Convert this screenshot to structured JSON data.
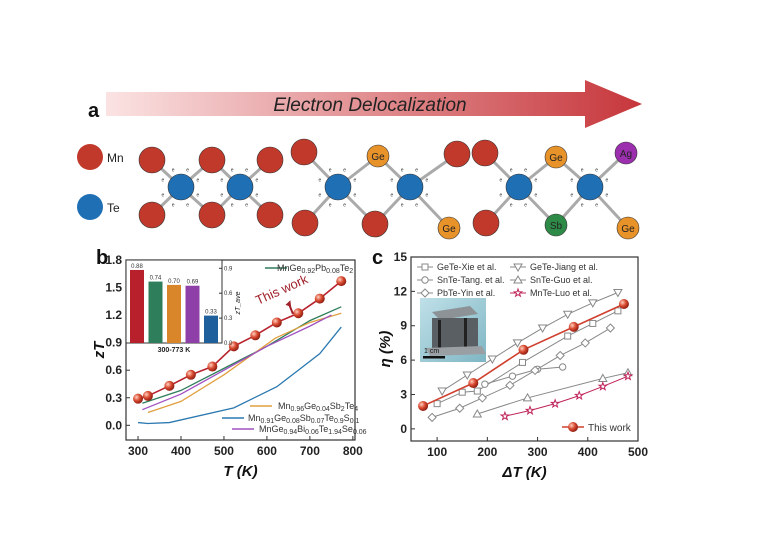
{
  "panel_a": {
    "label": "a",
    "arrow_text": "Electron Delocalization",
    "legend": [
      {
        "symbol": "Mn",
        "color": "#c0392b"
      },
      {
        "symbol": "Te",
        "color": "#1f6fb5"
      }
    ],
    "atom_labels": {
      "ge": "Ge",
      "ag": "Ag",
      "sb": "Sb"
    },
    "colors": {
      "mn": "#c0392b",
      "te": "#1f6fb5",
      "ge": "#e8922a",
      "ag": "#9b2fae",
      "sb": "#2e8b47",
      "arrow_start": "#fbe3e3",
      "arrow_end": "#c6363b"
    }
  },
  "panel_b": {
    "label": "b"
  },
  "panel_c": {
    "label": "c",
    "inset_scale": "1 cm"
  },
  "chart_data": [
    {
      "id": "b-main",
      "type": "line",
      "xlabel": "T (K)",
      "ylabel": "zT",
      "xlim": [
        272,
        805
      ],
      "ylim": [
        -0.16,
        1.8
      ],
      "xticks": [
        300,
        400,
        500,
        600,
        700,
        800
      ],
      "yticks": [
        0.0,
        0.3,
        0.6,
        0.9,
        1.2,
        1.5,
        1.8
      ],
      "annotation": "This work",
      "series": [
        {
          "name": "This work",
          "color": "#b8212c",
          "marker": "sphere",
          "x": [
            300,
            323,
            373,
            423,
            473,
            523,
            573,
            623,
            673,
            723,
            773
          ],
          "y": [
            0.29,
            0.32,
            0.43,
            0.55,
            0.64,
            0.86,
            0.98,
            1.12,
            1.22,
            1.38,
            1.57
          ]
        },
        {
          "name": "MnGe0.92Pb0.08Te2",
          "color": "#2e7d5b",
          "x": [
            310,
            400,
            500,
            600,
            700,
            773
          ],
          "y": [
            0.24,
            0.38,
            0.62,
            0.86,
            1.14,
            1.29
          ]
        },
        {
          "name": "Mn0.96Ge0.04Sb2Te4",
          "color": "#e0a040",
          "x": [
            323,
            400,
            500,
            620,
            700,
            773
          ],
          "y": [
            0.14,
            0.26,
            0.55,
            0.95,
            1.12,
            1.22
          ]
        },
        {
          "name": "Mn0.91Ge0.08Sb0.07Te0.9S0.1",
          "color": "#2a78b0",
          "x": [
            300,
            323,
            373,
            523,
            623,
            673,
            723,
            773
          ],
          "y": [
            0.03,
            0.02,
            0.03,
            0.19,
            0.42,
            0.6,
            0.78,
            1.07
          ]
        },
        {
          "name": "MnGe0.94Bi0.06Te1.94Se0.06",
          "color": "#a050c0",
          "x": [
            310,
            400,
            500,
            600,
            700,
            750
          ],
          "y": [
            0.17,
            0.34,
            0.6,
            0.86,
            1.08,
            1.2
          ]
        }
      ]
    },
    {
      "id": "b-inset",
      "type": "bar",
      "ylabel": "zT_ave",
      "xlabel": "300-773 K",
      "ylim": [
        0,
        1.0
      ],
      "yticks": [
        0.0,
        0.3,
        0.6,
        0.9
      ],
      "values": [
        0.88,
        0.74,
        0.7,
        0.69,
        0.33
      ],
      "labels": [
        "0.88",
        "0.74",
        "0.70",
        "0.69",
        "0.33"
      ],
      "colors": [
        "#b8212c",
        "#2e7d5b",
        "#d9852a",
        "#8e3fa8",
        "#1f5f9c"
      ]
    },
    {
      "id": "c-main",
      "type": "line",
      "xlabel": "ΔT (K)",
      "ylabel": "η (%)",
      "xlim": [
        48,
        500
      ],
      "ylim": [
        -1.06,
        15
      ],
      "xticks": [
        100,
        200,
        300,
        400,
        500
      ],
      "yticks": [
        0,
        3,
        6,
        9,
        12,
        15
      ],
      "series": [
        {
          "name": "GeTe-Xie et al.",
          "color": "#888888",
          "marker": "square",
          "x": [
            100,
            150,
            180,
            270,
            360,
            410,
            460
          ],
          "y": [
            2.2,
            3.2,
            3.3,
            5.8,
            8.1,
            9.2,
            10.3
          ]
        },
        {
          "name": "GeTe-Jiang et al.",
          "color": "#888888",
          "marker": "tri-down",
          "x": [
            110,
            160,
            210,
            260,
            310,
            360,
            410,
            460
          ],
          "y": [
            3.3,
            4.7,
            6.1,
            7.5,
            8.8,
            10.0,
            11.0,
            11.9
          ]
        },
        {
          "name": "SnTe-Tang. et al.",
          "color": "#888888",
          "marker": "circle",
          "x": [
            195,
            250,
            300,
            350
          ],
          "y": [
            3.9,
            4.6,
            5.2,
            5.4
          ]
        },
        {
          "name": "SnTe-Guo et al.",
          "color": "#888888",
          "marker": "tri-up",
          "x": [
            180,
            280,
            430,
            480
          ],
          "y": [
            1.3,
            2.7,
            4.4,
            4.9
          ]
        },
        {
          "name": "PbTe-Yin et al.",
          "color": "#888888",
          "marker": "diamond",
          "x": [
            90,
            145,
            190,
            245,
            295,
            345,
            395,
            445
          ],
          "y": [
            1.0,
            1.8,
            2.7,
            3.8,
            5.1,
            6.4,
            7.5,
            8.8
          ]
        },
        {
          "name": "MnTe-Luo et al.",
          "color": "#c0245a",
          "marker": "star",
          "x": [
            235,
            285,
            335,
            383,
            430,
            480
          ],
          "y": [
            1.1,
            1.6,
            2.2,
            2.9,
            3.7,
            4.6
          ]
        },
        {
          "name": "This work",
          "color": "#d0402e",
          "marker": "sphere",
          "x": [
            72,
            172,
            272,
            372,
            472
          ],
          "y": [
            2.0,
            4.0,
            6.9,
            8.9,
            10.9
          ]
        }
      ]
    }
  ]
}
